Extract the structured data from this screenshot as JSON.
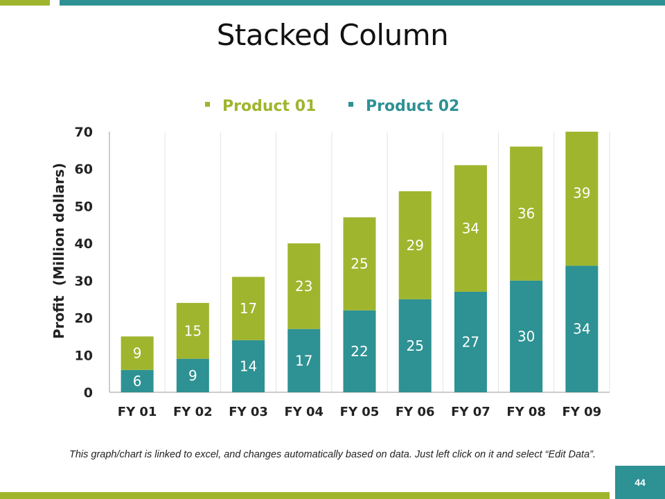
{
  "slide": {
    "title": "Stacked Column",
    "footnote": "This graph/chart is linked to excel, and changes automatically based on data. Just left click on it and select “Edit Data”.",
    "page_number": "44"
  },
  "colors": {
    "product01": "#9fb52e",
    "product02": "#2e9193",
    "grid": "#e3e3e3",
    "axis": "#999999"
  },
  "chart_data": {
    "type": "bar",
    "stacked": true,
    "title": "Stacked Column",
    "xlabel": "",
    "ylabel": "Profit  (Million dollars)",
    "ylim": [
      0,
      70
    ],
    "yticks": [
      0,
      10,
      20,
      30,
      40,
      50,
      60,
      70
    ],
    "categories": [
      "FY 01",
      "FY 02",
      "FY 03",
      "FY 04",
      "FY 05",
      "FY 06",
      "FY 07",
      "FY 08",
      "FY 09"
    ],
    "legend_position": "top",
    "series": [
      {
        "name": "Product 02",
        "values": [
          6,
          9,
          14,
          17,
          22,
          25,
          27,
          30,
          34
        ]
      },
      {
        "name": "Product 01",
        "values": [
          9,
          15,
          17,
          23,
          25,
          29,
          34,
          36,
          39
        ]
      }
    ]
  }
}
